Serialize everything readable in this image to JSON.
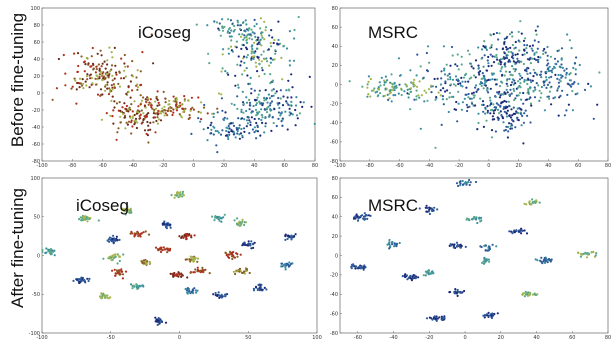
{
  "row_labels": {
    "before": "Before fine-tuning",
    "after": "After fine-tuning"
  },
  "colors": {
    "palette": [
      "#1c2a7a",
      "#2e5c9a",
      "#3a8fa0",
      "#5aa88a",
      "#a3b44a",
      "#8a5b24",
      "#b03020",
      "#6a2a1a"
    ]
  },
  "chart_data": [
    {
      "type": "scatter",
      "title": "iCoseg",
      "xlim": [
        -100,
        80
      ],
      "ylim": [
        -80,
        100
      ],
      "xticks": [
        "-100",
        "-80",
        "-60",
        "-40",
        "-20",
        "0",
        "20",
        "40",
        "60",
        "80"
      ],
      "yticks": [
        "100",
        "80",
        "60",
        "40",
        "20",
        "0",
        "-20",
        "-40",
        "-60",
        "-80"
      ],
      "clusters": [
        {
          "x": -60,
          "y": 20,
          "sx": 12,
          "sy": 14,
          "n": 180,
          "palette": [
            5,
            6,
            4,
            7
          ]
        },
        {
          "x": -35,
          "y": -25,
          "sx": 10,
          "sy": 12,
          "n": 140,
          "palette": [
            5,
            6,
            4,
            7
          ]
        },
        {
          "x": -10,
          "y": -15,
          "sx": 10,
          "sy": 8,
          "n": 90,
          "palette": [
            5,
            4,
            6
          ]
        },
        {
          "x": 40,
          "y": 50,
          "sx": 12,
          "sy": 18,
          "n": 160,
          "palette": [
            2,
            3,
            4,
            0
          ]
        },
        {
          "x": 50,
          "y": -15,
          "sx": 14,
          "sy": 14,
          "n": 170,
          "palette": [
            0,
            1,
            2,
            3
          ]
        },
        {
          "x": 25,
          "y": -45,
          "sx": 10,
          "sy": 10,
          "n": 90,
          "palette": [
            0,
            1,
            2
          ]
        },
        {
          "x": 30,
          "y": 75,
          "sx": 10,
          "sy": 6,
          "n": 50,
          "palette": [
            1,
            2,
            3
          ]
        }
      ]
    },
    {
      "type": "scatter",
      "title": "MSRC",
      "xlim": [
        -100,
        80
      ],
      "ylim": [
        -80,
        80
      ],
      "xticks": [
        "-100",
        "-80",
        "-60",
        "-40",
        "-20",
        "0",
        "20",
        "40",
        "60",
        "80"
      ],
      "yticks": [
        "80",
        "60",
        "40",
        "20",
        "0",
        "-20",
        "-40",
        "-60",
        "-80"
      ],
      "clusters": [
        {
          "x": 0,
          "y": 0,
          "sx": 28,
          "sy": 20,
          "n": 420,
          "palette": [
            0,
            1,
            2,
            3
          ]
        },
        {
          "x": 15,
          "y": 35,
          "sx": 12,
          "sy": 12,
          "n": 110,
          "palette": [
            0,
            1,
            3
          ]
        },
        {
          "x": -65,
          "y": -5,
          "sx": 12,
          "sy": 6,
          "n": 90,
          "palette": [
            3,
            4,
            2
          ]
        },
        {
          "x": 15,
          "y": -30,
          "sx": 8,
          "sy": 10,
          "n": 70,
          "palette": [
            0,
            1
          ]
        },
        {
          "x": 45,
          "y": 10,
          "sx": 10,
          "sy": 10,
          "n": 80,
          "palette": [
            1,
            2
          ]
        }
      ]
    },
    {
      "type": "scatter",
      "title": "iCoseg",
      "xlim": [
        -100,
        100
      ],
      "ylim": [
        -100,
        100
      ],
      "xticks": [
        "-100",
        "-50",
        "0",
        "50",
        "100"
      ],
      "yticks": [
        "100",
        "50",
        "0",
        "-50",
        "-100"
      ],
      "clusters": [
        {
          "x": -95,
          "y": 5,
          "sx": 2.5,
          "sy": 2,
          "n": 28,
          "palette": [
            3,
            2
          ]
        },
        {
          "x": -68,
          "y": 48,
          "sx": 2.5,
          "sy": 2,
          "n": 28,
          "palette": [
            3,
            4
          ]
        },
        {
          "x": -38,
          "y": 58,
          "sx": 2,
          "sy": 2,
          "n": 24,
          "palette": [
            4,
            3
          ]
        },
        {
          "x": -48,
          "y": 20,
          "sx": 2.5,
          "sy": 2,
          "n": 26,
          "palette": [
            0,
            1
          ]
        },
        {
          "x": -72,
          "y": -32,
          "sx": 2.5,
          "sy": 2,
          "n": 26,
          "palette": [
            0,
            1
          ]
        },
        {
          "x": -48,
          "y": -2,
          "sx": 2.5,
          "sy": 2.5,
          "n": 26,
          "palette": [
            4,
            3
          ]
        },
        {
          "x": -45,
          "y": -22,
          "sx": 2.5,
          "sy": 2.5,
          "n": 26,
          "palette": [
            5,
            6
          ]
        },
        {
          "x": -55,
          "y": -52,
          "sx": 2,
          "sy": 2,
          "n": 22,
          "palette": [
            3,
            4
          ]
        },
        {
          "x": -30,
          "y": 28,
          "sx": 2.5,
          "sy": 2,
          "n": 24,
          "palette": [
            5,
            6
          ]
        },
        {
          "x": -25,
          "y": -10,
          "sx": 2.5,
          "sy": 2,
          "n": 24,
          "palette": [
            5,
            4
          ]
        },
        {
          "x": -10,
          "y": 40,
          "sx": 2,
          "sy": 2,
          "n": 22,
          "palette": [
            0,
            1
          ]
        },
        {
          "x": 0,
          "y": 78,
          "sx": 2,
          "sy": 2,
          "n": 22,
          "palette": [
            4,
            3
          ]
        },
        {
          "x": -12,
          "y": 8,
          "sx": 2.5,
          "sy": 2,
          "n": 26,
          "palette": [
            6,
            5
          ]
        },
        {
          "x": 5,
          "y": 25,
          "sx": 2.5,
          "sy": 2,
          "n": 24,
          "palette": [
            7,
            6
          ]
        },
        {
          "x": 10,
          "y": -5,
          "sx": 2.5,
          "sy": 2,
          "n": 24,
          "palette": [
            5,
            4
          ]
        },
        {
          "x": -2,
          "y": -25,
          "sx": 2.5,
          "sy": 2,
          "n": 24,
          "palette": [
            6,
            7
          ]
        },
        {
          "x": 15,
          "y": -20,
          "sx": 2.5,
          "sy": 2,
          "n": 24,
          "palette": [
            5,
            6
          ]
        },
        {
          "x": 8,
          "y": -45,
          "sx": 2.5,
          "sy": 2,
          "n": 22,
          "palette": [
            1,
            2
          ]
        },
        {
          "x": 28,
          "y": 48,
          "sx": 2,
          "sy": 2,
          "n": 22,
          "palette": [
            3,
            2
          ]
        },
        {
          "x": 45,
          "y": 42,
          "sx": 2.5,
          "sy": 2,
          "n": 22,
          "palette": [
            4,
            3
          ]
        },
        {
          "x": 50,
          "y": 15,
          "sx": 2.5,
          "sy": 2,
          "n": 24,
          "palette": [
            0,
            1
          ]
        },
        {
          "x": 38,
          "y": 2,
          "sx": 2.5,
          "sy": 2,
          "n": 26,
          "palette": [
            6,
            5
          ]
        },
        {
          "x": 45,
          "y": -20,
          "sx": 2.5,
          "sy": 2,
          "n": 24,
          "palette": [
            5,
            4
          ]
        },
        {
          "x": 80,
          "y": 25,
          "sx": 2,
          "sy": 2,
          "n": 22,
          "palette": [
            0,
            1
          ]
        },
        {
          "x": 78,
          "y": -12,
          "sx": 2,
          "sy": 2,
          "n": 22,
          "palette": [
            2,
            1
          ]
        },
        {
          "x": 58,
          "y": -42,
          "sx": 2,
          "sy": 2,
          "n": 22,
          "palette": [
            1,
            0
          ]
        },
        {
          "x": 30,
          "y": -52,
          "sx": 2,
          "sy": 2,
          "n": 22,
          "palette": [
            0,
            1
          ]
        },
        {
          "x": -15,
          "y": -85,
          "sx": 2,
          "sy": 2,
          "n": 22,
          "palette": [
            0,
            1
          ]
        },
        {
          "x": -30,
          "y": -40,
          "sx": 2,
          "sy": 2,
          "n": 20,
          "palette": [
            2,
            3
          ]
        }
      ]
    },
    {
      "type": "scatter",
      "title": "MSRC",
      "xlim": [
        -70,
        80
      ],
      "ylim": [
        -80,
        80
      ],
      "xticks": [
        "-60",
        "-40",
        "-20",
        "0",
        "20",
        "40",
        "60",
        "80"
      ],
      "yticks": [
        "80",
        "60",
        "40",
        "20",
        "0",
        "-20",
        "-40",
        "-60",
        "-80"
      ],
      "clusters": [
        {
          "x": -58,
          "y": 40,
          "sx": 2.5,
          "sy": 1.5,
          "n": 26,
          "palette": [
            0,
            1
          ]
        },
        {
          "x": -60,
          "y": -12,
          "sx": 2.5,
          "sy": 1.5,
          "n": 26,
          "palette": [
            0,
            1
          ]
        },
        {
          "x": -40,
          "y": 12,
          "sx": 2,
          "sy": 2,
          "n": 22,
          "palette": [
            1,
            2
          ]
        },
        {
          "x": -30,
          "y": -22,
          "sx": 2.5,
          "sy": 1.5,
          "n": 26,
          "palette": [
            0,
            1
          ]
        },
        {
          "x": -20,
          "y": -18,
          "sx": 2,
          "sy": 1.5,
          "n": 22,
          "palette": [
            2,
            3
          ]
        },
        {
          "x": -20,
          "y": 48,
          "sx": 2,
          "sy": 1.5,
          "n": 22,
          "palette": [
            0,
            1
          ]
        },
        {
          "x": -15,
          "y": -65,
          "sx": 2.5,
          "sy": 1.5,
          "n": 24,
          "palette": [
            0,
            1
          ]
        },
        {
          "x": -5,
          "y": 10,
          "sx": 2.5,
          "sy": 1.5,
          "n": 24,
          "palette": [
            0,
            1
          ]
        },
        {
          "x": -5,
          "y": -38,
          "sx": 2,
          "sy": 1.5,
          "n": 22,
          "palette": [
            0,
            1
          ]
        },
        {
          "x": 0,
          "y": 75,
          "sx": 2,
          "sy": 1.5,
          "n": 20,
          "palette": [
            2,
            1
          ]
        },
        {
          "x": 5,
          "y": 38,
          "sx": 2,
          "sy": 1.5,
          "n": 22,
          "palette": [
            3,
            2
          ]
        },
        {
          "x": 12,
          "y": 8,
          "sx": 2,
          "sy": 1.5,
          "n": 20,
          "palette": [
            1,
            2
          ]
        },
        {
          "x": 12,
          "y": -5,
          "sx": 2,
          "sy": 1.5,
          "n": 20,
          "palette": [
            2,
            3
          ]
        },
        {
          "x": 15,
          "y": -62,
          "sx": 2.5,
          "sy": 1.5,
          "n": 22,
          "palette": [
            0,
            1
          ]
        },
        {
          "x": 30,
          "y": 25,
          "sx": 2.5,
          "sy": 1.5,
          "n": 24,
          "palette": [
            0,
            1
          ]
        },
        {
          "x": 38,
          "y": 55,
          "sx": 2,
          "sy": 1.5,
          "n": 20,
          "palette": [
            3,
            4
          ]
        },
        {
          "x": 45,
          "y": -5,
          "sx": 2.5,
          "sy": 1.5,
          "n": 24,
          "palette": [
            1,
            2
          ]
        },
        {
          "x": 35,
          "y": -40,
          "sx": 2.5,
          "sy": 1.5,
          "n": 24,
          "palette": [
            3,
            4
          ]
        },
        {
          "x": 68,
          "y": 2,
          "sx": 2.5,
          "sy": 1.5,
          "n": 24,
          "palette": [
            3,
            4
          ]
        }
      ]
    }
  ]
}
